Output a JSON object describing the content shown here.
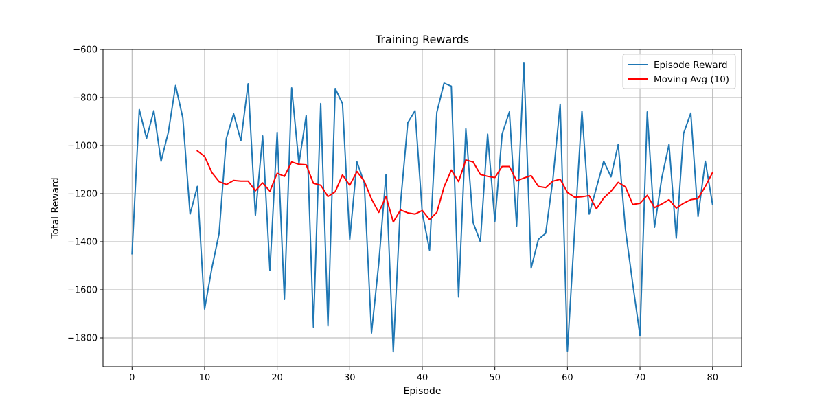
{
  "chart_data": {
    "type": "line",
    "title": "Training Rewards",
    "xlabel": "Episode",
    "ylabel": "Total Reward",
    "xlim": [
      -4,
      84
    ],
    "ylim": [
      -1920,
      -600
    ],
    "xticks": [
      0,
      10,
      20,
      30,
      40,
      50,
      60,
      70,
      80
    ],
    "yticks": [
      -1800,
      -1600,
      -1400,
      -1200,
      -1000,
      -800,
      -600
    ],
    "grid": true,
    "legend_position": "top-right",
    "series": [
      {
        "name": "Episode Reward",
        "color": "#1f77b4",
        "x": [
          0,
          1,
          2,
          3,
          4,
          5,
          6,
          7,
          8,
          9,
          10,
          11,
          12,
          13,
          14,
          15,
          16,
          17,
          18,
          19,
          20,
          21,
          22,
          23,
          24,
          25,
          26,
          27,
          28,
          29,
          30,
          31,
          32,
          33,
          34,
          35,
          36,
          37,
          38,
          39,
          40,
          41,
          42,
          43,
          44,
          45,
          46,
          47,
          48,
          49,
          50,
          51,
          52,
          53,
          54,
          55,
          56,
          57,
          58,
          59,
          60,
          61,
          62,
          63,
          64,
          65,
          66,
          67,
          68,
          69,
          70,
          71,
          72,
          73,
          74,
          75,
          76,
          77,
          78,
          79,
          80
        ],
        "values": [
          -1450,
          -850,
          -970,
          -855,
          -1065,
          -945,
          -750,
          -885,
          -1285,
          -1170,
          -1680,
          -1510,
          -1365,
          -970,
          -868,
          -980,
          -743,
          -1290,
          -960,
          -1520,
          -945,
          -1640,
          -760,
          -1075,
          -875,
          -1755,
          -825,
          -1750,
          -763,
          -825,
          -1390,
          -1068,
          -1155,
          -1780,
          -1490,
          -1120,
          -1858,
          -1240,
          -905,
          -855,
          -1280,
          -1435,
          -862,
          -740,
          -753,
          -1630,
          -930,
          -1320,
          -1400,
          -952,
          -1315,
          -952,
          -860,
          -1335,
          -657,
          -1510,
          -1390,
          -1365,
          -1140,
          -828,
          -1855,
          -1350,
          -857,
          -1285,
          -1175,
          -1065,
          -1130,
          -995,
          -1350,
          -1575,
          -1790,
          -860,
          -1340,
          -1135,
          -995,
          -1385,
          -950,
          -865,
          -1295,
          -1065,
          -1245
        ]
      },
      {
        "name": "Moving Avg (10)",
        "color": "#ff0000",
        "x": [
          9,
          10,
          11,
          12,
          13,
          14,
          15,
          16,
          17,
          18,
          19,
          20,
          21,
          22,
          23,
          24,
          25,
          26,
          27,
          28,
          29,
          30,
          31,
          32,
          33,
          34,
          35,
          36,
          37,
          38,
          39,
          40,
          41,
          42,
          43,
          44,
          45,
          46,
          47,
          48,
          49,
          50,
          51,
          52,
          53,
          54,
          55,
          56,
          57,
          58,
          59,
          60,
          61,
          62,
          63,
          64,
          65,
          66,
          67,
          68,
          69,
          70,
          71,
          72,
          73,
          74,
          75,
          76,
          77,
          78,
          79,
          80
        ],
        "values": [
          -1022,
          -1045,
          -1112,
          -1150,
          -1162,
          -1145,
          -1148,
          -1148,
          -1188,
          -1155,
          -1190,
          -1115,
          -1128,
          -1068,
          -1078,
          -1080,
          -1157,
          -1165,
          -1212,
          -1192,
          -1122,
          -1165,
          -1108,
          -1148,
          -1222,
          -1278,
          -1212,
          -1318,
          -1268,
          -1280,
          -1285,
          -1270,
          -1308,
          -1278,
          -1172,
          -1102,
          -1150,
          -1060,
          -1068,
          -1120,
          -1128,
          -1133,
          -1087,
          -1087,
          -1147,
          -1135,
          -1125,
          -1170,
          -1175,
          -1148,
          -1140,
          -1195,
          -1215,
          -1213,
          -1208,
          -1263,
          -1218,
          -1190,
          -1153,
          -1172,
          -1245,
          -1240,
          -1207,
          -1258,
          -1243,
          -1225,
          -1260,
          -1240,
          -1225,
          -1220,
          -1170,
          -1112
        ]
      }
    ]
  }
}
